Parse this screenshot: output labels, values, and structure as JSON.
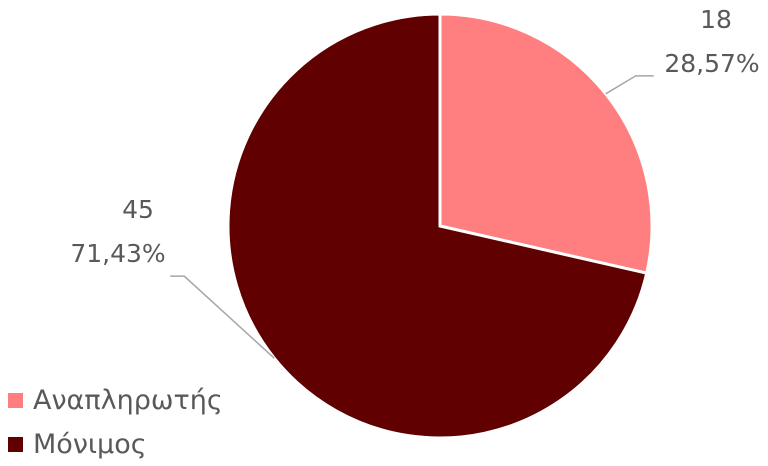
{
  "chart_data": {
    "type": "pie",
    "categories": [
      "Αναπληρωτής",
      "Μόνιμος"
    ],
    "values": [
      18,
      45
    ],
    "percent_labels": [
      "28,57%",
      "71,43%"
    ],
    "colors": [
      "#FF7F80",
      "#600000"
    ],
    "legend_position": "bottom-left",
    "title": ""
  }
}
